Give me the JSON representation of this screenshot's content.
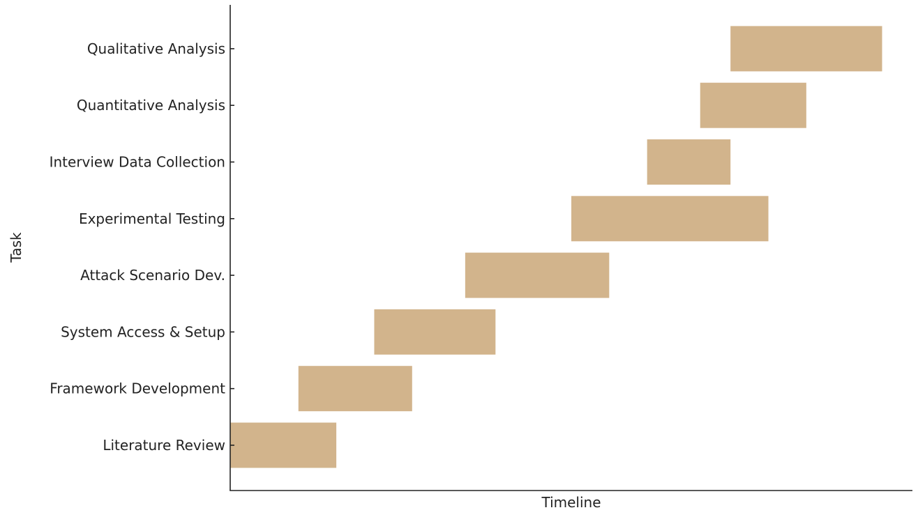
{
  "chart_data": {
    "type": "bar",
    "orientation": "horizontal",
    "layout": "gantt",
    "xlabel": "Timeline",
    "ylabel": "Task",
    "xlim": [
      0,
      18
    ],
    "categories": [
      "Literature Review",
      "Framework Development",
      "System Access & Setup",
      "Attack Scenario Dev.",
      "Experimental Testing",
      "Interview Data Collection",
      "Quantitative Analysis",
      "Qualitative Analysis"
    ],
    "series": [
      {
        "start": [
          0,
          1.8,
          3.8,
          6.2,
          9,
          11,
          12.4,
          13.2
        ],
        "end": [
          2.8,
          4.8,
          7,
          10,
          14.2,
          13.2,
          15.2,
          17.2
        ]
      }
    ],
    "x_ticks_visible": false,
    "grid": false,
    "legend": "none",
    "bar_color": "#d2b48c"
  }
}
